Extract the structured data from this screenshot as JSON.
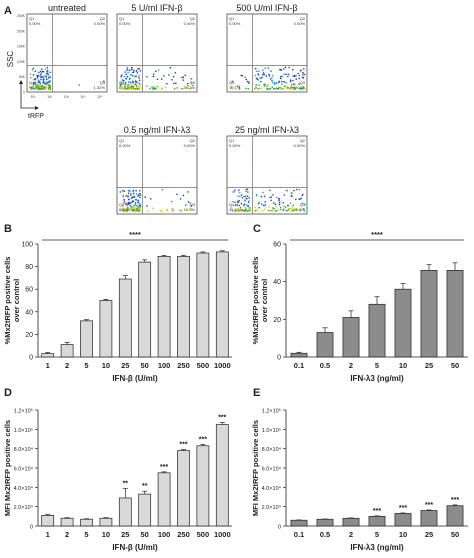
{
  "chart_data": [
    {
      "panel": "A",
      "type": "scatter",
      "xlabel": "tRFP",
      "ylabel": "SSC",
      "plots": [
        {
          "title": "untreated",
          "gates": {
            "q1": "Q1",
            "q1v": "0.00%",
            "q2": "Q2",
            "q2v": "0.00%",
            "q3": "Q3",
            "q3v": "1.32%",
            "q4": "Q4",
            "q4v": "98.7%"
          },
          "positive_pct": 1.32
        },
        {
          "title": "5 U/ml IFN-β",
          "gates": {
            "q1": "Q1",
            "q1v": "0.00%",
            "q2": "Q2",
            "q2v": "0.00%",
            "q3": "Q3",
            "q3v": "33.3%",
            "q4": "Q4",
            "q4v": "66.7%"
          },
          "positive_pct": 33.3
        },
        {
          "title": "500 U/ml IFN-β",
          "gates": {
            "q1": "Q1",
            "q1v": "0.00%",
            "q2": "Q2",
            "q2v": "0.00%",
            "q3": "Q3",
            "q3v": "89.9%",
            "q4": "Q4",
            "q4v": "10.1%"
          },
          "positive_pct": 89.9
        },
        {
          "title": "0.5 ng/ml IFN-λ3",
          "gates": {
            "q1": "Q1",
            "q1v": "0.00%",
            "q2": "Q2",
            "q2v": "0.00%",
            "q3": "Q3",
            "q3v": "16.5%",
            "q4": "Q4",
            "q4v": "83.5%"
          },
          "positive_pct": 16.5
        },
        {
          "title": "25 ng/ml IFN-λ3",
          "gates": {
            "q1": "Q1",
            "q1v": "0.00%",
            "q2": "Q2",
            "q2v": "0.00%",
            "q3": "Q3",
            "q3v": "54.6%",
            "q4": "Q4",
            "q4v": "45.4%"
          },
          "positive_pct": 54.6
        }
      ],
      "y_ticks": [
        "250K",
        "200K",
        "150K",
        "100K",
        "50K",
        "0"
      ],
      "x_ticks": [
        "10¹",
        "10²",
        "10³",
        "10⁴",
        "10⁵"
      ]
    },
    {
      "panel": "B",
      "type": "bar",
      "categories": [
        "1",
        "2",
        "5",
        "10",
        "25",
        "50",
        "100",
        "250",
        "500",
        "1000"
      ],
      "values": [
        3,
        11,
        32,
        50,
        69,
        84,
        89,
        89,
        92,
        93
      ],
      "errors": [
        1,
        2,
        1,
        1,
        3,
        2,
        1,
        1,
        1,
        1
      ],
      "bar_color": "#d9d9d9",
      "xlabel": "IFN-β (U/ml)",
      "ylabel": "%Mx2tRFP positive cells over control",
      "ylim": [
        0,
        100
      ],
      "yticks": [
        "0",
        "20",
        "40",
        "60",
        "80",
        "100"
      ],
      "significance": "****"
    },
    {
      "panel": "C",
      "type": "bar",
      "categories": [
        "0.1",
        "0.5",
        "2",
        "5",
        "10",
        "25",
        "50"
      ],
      "values": [
        2,
        13,
        21,
        28,
        36,
        46,
        46
      ],
      "errors": [
        0.5,
        2.5,
        3.5,
        4,
        3,
        3,
        4
      ],
      "bar_color": "#8c8c8c",
      "xlabel": "IFN-λ3 (ng/ml)",
      "ylabel": "%Mx2tRFP positive cells over control",
      "ylim": [
        0,
        60
      ],
      "yticks": [
        "0",
        "20",
        "40",
        "60"
      ],
      "significance": "****"
    },
    {
      "panel": "D",
      "type": "bar",
      "categories": [
        "1",
        "2",
        "5",
        "10",
        "25",
        "50",
        "100",
        "250",
        "500",
        "1000"
      ],
      "values": [
        11000,
        8000,
        7000,
        8000,
        29000,
        33000,
        55000,
        78000,
        83000,
        105000
      ],
      "errors": [
        800,
        600,
        500,
        600,
        10000,
        3000,
        1000,
        1000,
        1500,
        2000
      ],
      "stars": [
        "",
        "",
        "",
        "",
        "**",
        "**",
        "***",
        "***",
        "***",
        "***"
      ],
      "bar_color": "#d9d9d9",
      "xlabel": "IFN-β (U/ml)",
      "ylabel": "MFI Mx2tRFP positive cells",
      "ylim": [
        0,
        120000
      ],
      "yticks": [
        "0",
        "2.0×10⁴",
        "4.0×10⁴",
        "6.0×10⁴",
        "8.0×10⁴",
        "1.0×10⁵",
        "1.2×10⁵"
      ]
    },
    {
      "panel": "E",
      "type": "bar",
      "categories": [
        "0.1",
        "0.5",
        "2",
        "5",
        "10",
        "25",
        "50"
      ],
      "values": [
        6000,
        7000,
        8000,
        10000,
        13000,
        16000,
        21000
      ],
      "errors": [
        300,
        300,
        400,
        500,
        500,
        600,
        800
      ],
      "stars": [
        "",
        "",
        "",
        "***",
        "***",
        "***",
        "***"
      ],
      "bar_color": "#8c8c8c",
      "xlabel": "IFN-λ3 (ng/ml)",
      "ylabel": "MFI Mx2tRFP positive cells",
      "ylim": [
        0,
        120000
      ],
      "yticks": [
        "0",
        "2.0×10⁴",
        "4.0×10⁴",
        "6.0×10⁴",
        "8.0×10⁴",
        "1.0×10⁵",
        "1.2×10⁵"
      ]
    }
  ]
}
